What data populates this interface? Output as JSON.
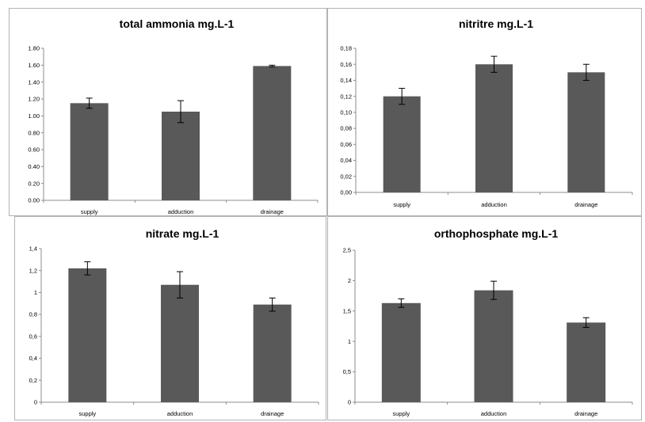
{
  "colors": {
    "bar": "#595959",
    "axis": "#8c8c8c",
    "errorbar": "#000000"
  },
  "chart_data": [
    {
      "type": "bar",
      "title": "total ammonia mg.L-1",
      "categories": [
        "supply",
        "adduction",
        "drainage"
      ],
      "values": [
        1.15,
        1.05,
        1.59
      ],
      "errors": [
        0.06,
        0.13,
        0.01
      ],
      "ylim": [
        0,
        1.8
      ],
      "yticks": [
        "0.00",
        "0.20",
        "0.40",
        "0.60",
        "0.80",
        "1.00",
        "1.20",
        "1.40",
        "1.60",
        "1.80"
      ],
      "grid": false
    },
    {
      "type": "bar",
      "title": "nitritre mg.L-1",
      "categories": [
        "supply",
        "adduction",
        "drainage"
      ],
      "values": [
        0.12,
        0.16,
        0.15
      ],
      "errors": [
        0.01,
        0.01,
        0.01
      ],
      "ylim": [
        0,
        0.18
      ],
      "yticks": [
        "0,00",
        "0,02",
        "0,04",
        "0,06",
        "0,08",
        "0,10",
        "0,12",
        "0,14",
        "0,16",
        "0,18"
      ],
      "grid": false
    },
    {
      "type": "bar",
      "title": "nitrate mg.L-1",
      "categories": [
        "supply",
        "adduction",
        "drainage"
      ],
      "values": [
        1.22,
        1.07,
        0.89
      ],
      "errors": [
        0.06,
        0.12,
        0.06
      ],
      "ylim": [
        0,
        1.4
      ],
      "yticks": [
        "0",
        "0,2",
        "0,4",
        "0,6",
        "0,8",
        "1",
        "1,2",
        "1,4"
      ],
      "grid": false
    },
    {
      "type": "bar",
      "title": "orthophosphate mg.L-1",
      "categories": [
        "supply",
        "adduction",
        "drainage"
      ],
      "values": [
        1.63,
        1.84,
        1.31
      ],
      "errors": [
        0.07,
        0.15,
        0.08
      ],
      "ylim": [
        0,
        2.5
      ],
      "yticks": [
        "0",
        "0,5",
        "1",
        "1,5",
        "2",
        "2,5"
      ],
      "grid": false
    }
  ]
}
